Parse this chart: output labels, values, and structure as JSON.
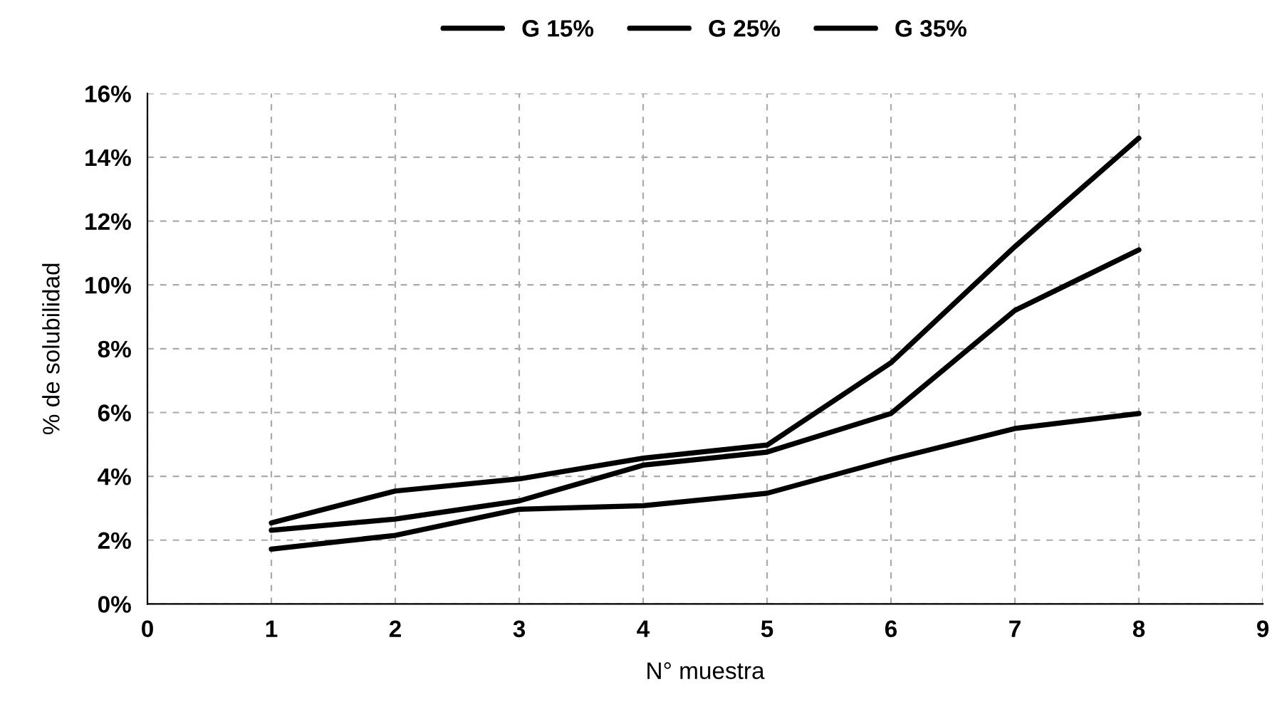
{
  "chart_data": {
    "type": "line",
    "x": [
      1,
      2,
      3,
      4,
      5,
      6,
      7,
      8
    ],
    "series": [
      {
        "name": "G 15%",
        "color": "#000000",
        "values": [
          1.72,
          2.15,
          2.97,
          3.08,
          3.47,
          4.53,
          5.5,
          5.97
        ]
      },
      {
        "name": "G 25%",
        "color": "#000000",
        "values": [
          2.31,
          2.66,
          3.23,
          4.35,
          4.76,
          5.97,
          9.2,
          11.1
        ]
      },
      {
        "name": "G 35%",
        "color": "#000000",
        "values": [
          2.54,
          3.54,
          3.92,
          4.57,
          4.98,
          7.56,
          11.2,
          14.6
        ]
      }
    ],
    "xlabel": "N° muestra",
    "ylabel": "% de solubilidad",
    "xlim": [
      0,
      9
    ],
    "xticks": [
      0,
      1,
      2,
      3,
      4,
      5,
      6,
      7,
      8,
      9
    ],
    "ylim": [
      0,
      16
    ],
    "yticks": [
      {
        "value": 0,
        "label": "0%"
      },
      {
        "value": 2,
        "label": "2%"
      },
      {
        "value": 4,
        "label": "4%"
      },
      {
        "value": 6,
        "label": "6%"
      },
      {
        "value": 8,
        "label": "8%"
      },
      {
        "value": 10,
        "label": "10%"
      },
      {
        "value": 12,
        "label": "12%"
      },
      {
        "value": 14,
        "label": "14%"
      },
      {
        "value": 16,
        "label": "16%"
      }
    ],
    "grid": true,
    "legend": "top",
    "marker": "none",
    "line_style": "solid"
  }
}
